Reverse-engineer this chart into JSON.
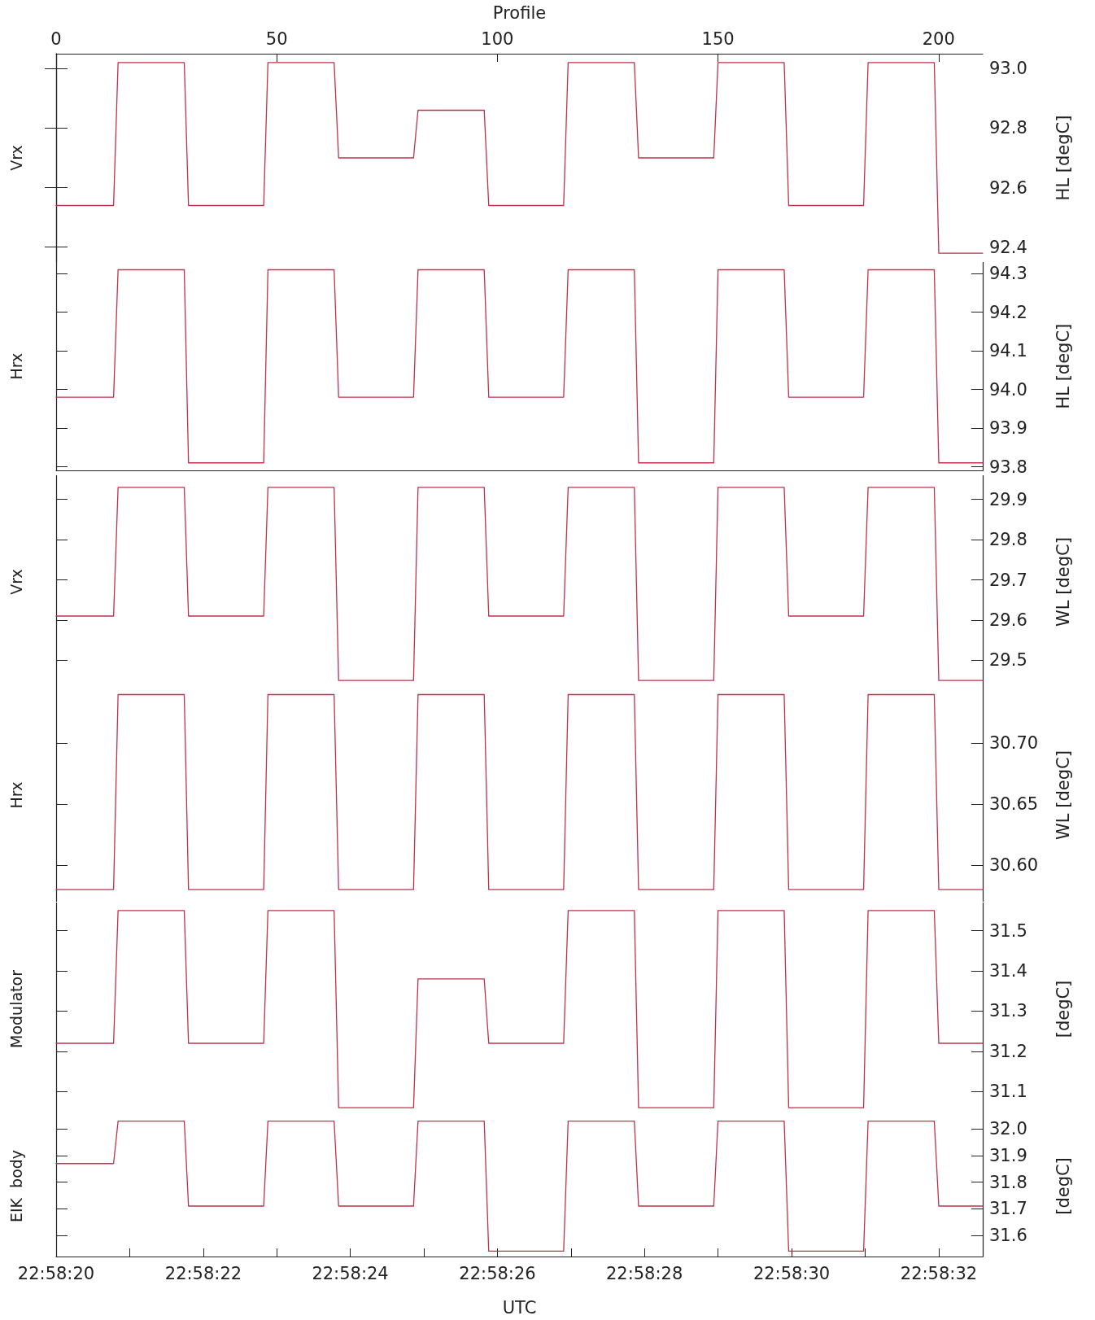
{
  "chart_data": [
    {
      "type": "line",
      "ylabel": "Vrx",
      "y2label": "HL [degC]",
      "x2label": "Profile",
      "x": [
        22.972222,
        22.972439,
        22.972456,
        22.972706,
        22.972722,
        22.973006,
        22.973022,
        22.973272,
        22.973289,
        22.973572,
        22.973589,
        22.973839,
        22.973856,
        22.974139,
        22.974156,
        22.974406,
        22.974422,
        22.974706,
        22.974722,
        22.974972,
        22.974989,
        22.975272,
        22.975289,
        22.975539,
        22.975556,
        22.975722
      ],
      "xlim": [
        22.972222,
        22.975722
      ],
      "x2lim": [
        0,
        210
      ],
      "x2ticks": [
        0,
        50,
        100,
        150,
        200
      ],
      "ylim": [
        92.35,
        93.05
      ],
      "yticks": [
        {
          "value": 92.4,
          "label": "92.4"
        },
        {
          "value": 92.6,
          "label": "92.6"
        },
        {
          "value": 92.8,
          "label": "92.8"
        },
        {
          "value": 93,
          "label": "93.0"
        }
      ],
      "tick_labels": "y",
      "series": [
        {
          "color": "#c0304f",
          "values": [
            92.54,
            92.54,
            93.02,
            93.02,
            92.54,
            92.54,
            93.02,
            93.02,
            92.7,
            92.7,
            92.86,
            92.86,
            92.54,
            92.54,
            93.02,
            93.02,
            92.7,
            92.7,
            93.02,
            93.02,
            92.54,
            92.54,
            93.02,
            93.02,
            92.38,
            92.38
          ]
        }
      ]
    },
    {
      "type": "line",
      "ylabel": "Hrx",
      "y2label": "HL [degC]",
      "x": [
        22.972222,
        22.972439,
        22.972456,
        22.972706,
        22.972722,
        22.973006,
        22.973022,
        22.973272,
        22.973289,
        22.973572,
        22.973589,
        22.973839,
        22.973856,
        22.974139,
        22.974156,
        22.974406,
        22.974422,
        22.974706,
        22.974722,
        22.974972,
        22.974989,
        22.975272,
        22.975289,
        22.975539,
        22.975556,
        22.975722
      ],
      "xlim": [
        22.972222,
        22.975722
      ],
      "ylim": [
        93.79,
        94.33
      ],
      "yticks": [
        {
          "value": 93.8,
          "label": "93.8"
        },
        {
          "value": 93.9,
          "label": "93.9"
        },
        {
          "value": 94,
          "label": "94.0"
        },
        {
          "value": 94.1,
          "label": "94.1"
        },
        {
          "value": 94.2,
          "label": "94.2"
        },
        {
          "value": 94.3,
          "label": "94.3"
        }
      ],
      "tick_labels": "y",
      "series": [
        {
          "color": "#c0304f",
          "values": [
            93.98,
            93.98,
            94.31,
            94.31,
            93.81,
            93.81,
            94.31,
            94.31,
            93.98,
            93.98,
            94.31,
            94.31,
            93.98,
            93.98,
            94.31,
            94.31,
            93.81,
            93.81,
            94.31,
            94.31,
            93.98,
            93.98,
            94.31,
            94.31,
            93.81,
            93.81
          ]
        }
      ]
    },
    {
      "type": "line",
      "ylabel": "Vrx",
      "y2label": "WL [degC]",
      "x": [
        22.972222,
        22.972439,
        22.972456,
        22.972706,
        22.972722,
        22.973006,
        22.973022,
        22.973272,
        22.973289,
        22.973572,
        22.973589,
        22.973839,
        22.973856,
        22.974139,
        22.974156,
        22.974406,
        22.974422,
        22.974706,
        22.974722,
        22.974972,
        22.974989,
        22.975272,
        22.975289,
        22.975539,
        22.975556,
        22.975722
      ],
      "xlim": [
        22.972222,
        22.975722
      ],
      "ylim": [
        29.43,
        29.96
      ],
      "yticks": [
        {
          "value": 29.5,
          "label": "29.5"
        },
        {
          "value": 29.6,
          "label": "29.6"
        },
        {
          "value": 29.7,
          "label": "29.7"
        },
        {
          "value": 29.8,
          "label": "29.8"
        },
        {
          "value": 29.9,
          "label": "29.9"
        }
      ],
      "tick_labels": "y",
      "series": [
        {
          "color": "#c0304f",
          "values": [
            29.61,
            29.61,
            29.93,
            29.93,
            29.61,
            29.61,
            29.93,
            29.93,
            29.45,
            29.45,
            29.93,
            29.93,
            29.61,
            29.61,
            29.93,
            29.93,
            29.45,
            29.45,
            29.93,
            29.93,
            29.61,
            29.61,
            29.93,
            29.93,
            29.45,
            29.45
          ]
        }
      ]
    },
    {
      "type": "line",
      "ylabel": "Hrx",
      "y2label": "WL [degC]",
      "x": [
        22.972222,
        22.972439,
        22.972456,
        22.972706,
        22.972722,
        22.973006,
        22.973022,
        22.973272,
        22.973289,
        22.973572,
        22.973589,
        22.973839,
        22.973856,
        22.974139,
        22.974156,
        22.974406,
        22.974422,
        22.974706,
        22.974722,
        22.974972,
        22.974989,
        22.975272,
        22.975289,
        22.975539,
        22.975556,
        22.975722
      ],
      "xlim": [
        22.972222,
        22.975722
      ],
      "ylim": [
        30.57,
        30.745
      ],
      "yticks": [
        {
          "value": 30.6,
          "label": "30.60"
        },
        {
          "value": 30.65,
          "label": "30.65"
        },
        {
          "value": 30.7,
          "label": "30.70"
        }
      ],
      "tick_labels": "y",
      "series": [
        {
          "color": "#c0304f",
          "values": [
            30.58,
            30.58,
            30.74,
            30.74,
            30.58,
            30.58,
            30.74,
            30.74,
            30.58,
            30.58,
            30.74,
            30.74,
            30.58,
            30.58,
            30.74,
            30.74,
            30.58,
            30.58,
            30.74,
            30.74,
            30.58,
            30.58,
            30.74,
            30.74,
            30.58,
            30.58
          ]
        }
      ]
    },
    {
      "type": "line",
      "ylabel": "Modulator",
      "y2label": "[degC]",
      "x": [
        22.972222,
        22.972439,
        22.972456,
        22.972706,
        22.972722,
        22.973006,
        22.973022,
        22.973272,
        22.973289,
        22.973572,
        22.973589,
        22.973839,
        22.973856,
        22.974139,
        22.974156,
        22.974406,
        22.974422,
        22.974706,
        22.974722,
        22.974972,
        22.974989,
        22.975272,
        22.975289,
        22.975539,
        22.975556,
        22.975722
      ],
      "xlim": [
        22.972222,
        22.975722
      ],
      "ylim": [
        31.04,
        31.57
      ],
      "yticks": [
        {
          "value": 31.1,
          "label": "31.1"
        },
        {
          "value": 31.2,
          "label": "31.2"
        },
        {
          "value": 31.3,
          "label": "31.3"
        },
        {
          "value": 31.4,
          "label": "31.4"
        },
        {
          "value": 31.5,
          "label": "31.5"
        }
      ],
      "tick_labels": "y",
      "series": [
        {
          "color": "#c0304f",
          "values": [
            31.22,
            31.22,
            31.55,
            31.55,
            31.22,
            31.22,
            31.55,
            31.55,
            31.06,
            31.06,
            31.38,
            31.38,
            31.22,
            31.22,
            31.55,
            31.55,
            31.06,
            31.06,
            31.55,
            31.55,
            31.06,
            31.06,
            31.55,
            31.55,
            31.22,
            31.22
          ]
        }
      ]
    },
    {
      "type": "line",
      "ylabel": "EIK  body",
      "y2label": "[degC]",
      "xlabel": "UTC",
      "x": [
        22.972222,
        22.972439,
        22.972456,
        22.972706,
        22.972722,
        22.973006,
        22.973022,
        22.973272,
        22.973289,
        22.973572,
        22.973589,
        22.973839,
        22.973856,
        22.974139,
        22.974156,
        22.974406,
        22.974422,
        22.974706,
        22.974722,
        22.974972,
        22.974989,
        22.975272,
        22.975289,
        22.975539,
        22.975556,
        22.975722
      ],
      "xlim": [
        22.972222,
        22.975722
      ],
      "xticks": [
        {
          "value": 22.972222,
          "label": "22:58:20"
        },
        {
          "value": 22.9725,
          "label": null
        },
        {
          "value": 22.972778,
          "label": "22:58:22"
        },
        {
          "value": 22.973056,
          "label": null
        },
        {
          "value": 22.973333,
          "label": "22:58:24"
        },
        {
          "value": 22.973611,
          "label": null
        },
        {
          "value": 22.973889,
          "label": "22:58:26"
        },
        {
          "value": 22.974167,
          "label": null
        },
        {
          "value": 22.974444,
          "label": "22:58:28"
        },
        {
          "value": 22.974722,
          "label": null
        },
        {
          "value": 22.975,
          "label": "22:58:30"
        },
        {
          "value": 22.975278,
          "label": null
        },
        {
          "value": 22.975556,
          "label": "22:58:32"
        }
      ],
      "ylim": [
        31.52,
        32.05
      ],
      "yticks": [
        {
          "value": 31.6,
          "label": "31.6"
        },
        {
          "value": 31.7,
          "label": "31.7"
        },
        {
          "value": 31.8,
          "label": "31.8"
        },
        {
          "value": 31.9,
          "label": "31.9"
        },
        {
          "value": 32,
          "label": "32.0"
        }
      ],
      "series": [
        {
          "color": "#c0304f",
          "values": [
            31.87,
            31.87,
            32.03,
            32.03,
            31.71,
            31.71,
            32.03,
            32.03,
            31.71,
            31.71,
            32.03,
            32.03,
            31.54,
            31.54,
            32.03,
            32.03,
            31.71,
            31.71,
            32.03,
            32.03,
            31.54,
            31.54,
            32.03,
            32.03,
            31.71,
            31.71
          ]
        }
      ]
    }
  ]
}
